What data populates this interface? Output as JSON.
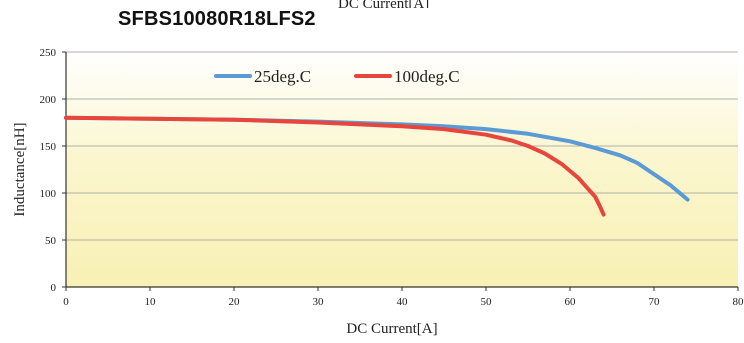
{
  "chart_data": {
    "type": "line",
    "title": "SFBS10080R18LFS2",
    "top_clipped_label": "DC Current[A]",
    "xlabel": "DC Current[A]",
    "ylabel": "Inductance[nH]",
    "xlim": [
      0,
      80
    ],
    "ylim": [
      0,
      250
    ],
    "x_ticks": [
      "0",
      "10",
      "20",
      "30",
      "40",
      "50",
      "60",
      "70",
      "80"
    ],
    "y_ticks": [
      "0",
      "50",
      "100",
      "150",
      "200",
      "250"
    ],
    "grid": true,
    "legend_position": "top",
    "series": [
      {
        "name": "25deg.C",
        "color": "#5b9bd5",
        "x": [
          0,
          10,
          20,
          30,
          40,
          45,
          50,
          55,
          60,
          63,
          66,
          68,
          70,
          72,
          74
        ],
        "y": [
          180,
          179,
          178,
          176,
          173,
          171,
          168,
          163,
          155,
          148,
          140,
          132,
          120,
          108,
          93
        ]
      },
      {
        "name": "100deg.C",
        "color": "#e8453c",
        "x": [
          0,
          10,
          20,
          30,
          40,
          45,
          50,
          53,
          55,
          57,
          59,
          61,
          62,
          63,
          63.5,
          64
        ],
        "y": [
          180,
          179,
          178,
          175,
          171,
          168,
          162,
          156,
          150,
          142,
          131,
          116,
          106,
          96,
          87,
          77
        ]
      }
    ],
    "background_gradient": [
      "#ffffff",
      "#fbf6cf",
      "#f8f0b3"
    ]
  }
}
